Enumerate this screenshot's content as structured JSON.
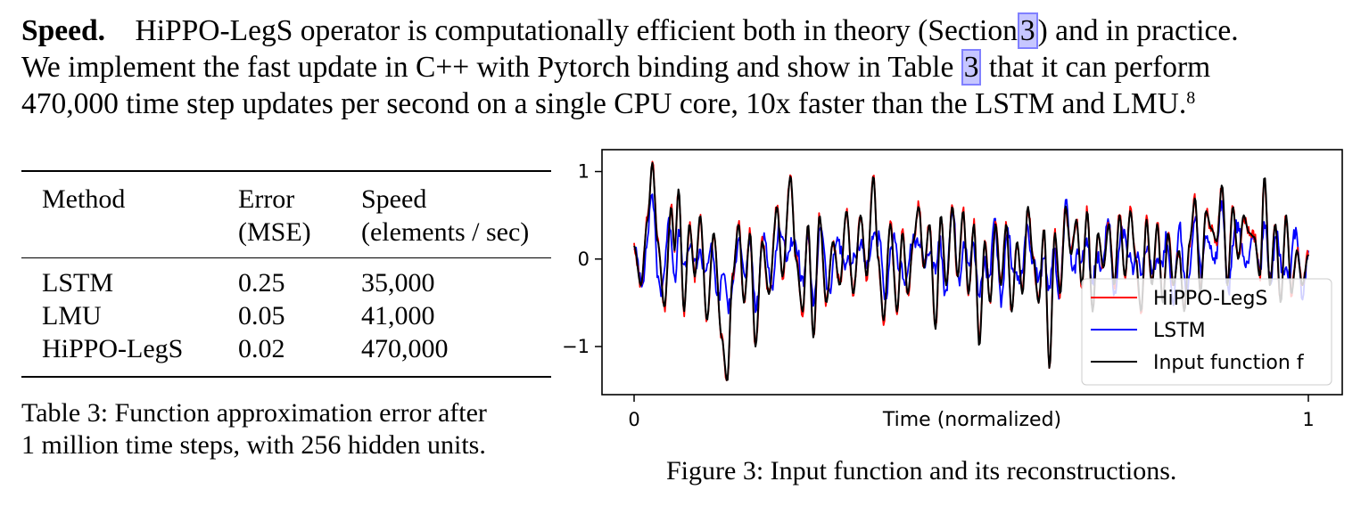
{
  "paragraph": {
    "heading": "Speed.",
    "segments": [
      "HiPPO-LegS operator is computationally efficient both in theory (Section",
      ") and in practice.",
      "We implement the fast update in C++ with Pytorch binding and show in Table",
      "that it can perform",
      "470,000 time step updates per second on a single CPU core, 10x faster than the LSTM and LMU."
    ],
    "ref_section": "3",
    "ref_table": "3",
    "footnote": "8"
  },
  "table": {
    "headers": [
      [
        "Method",
        ""
      ],
      [
        "Error",
        "(MSE)"
      ],
      [
        "Speed",
        "(elements / sec)"
      ]
    ],
    "rows": [
      [
        "LSTM",
        "0.25",
        "35,000"
      ],
      [
        "LMU",
        "0.05",
        "41,000"
      ],
      [
        "HiPPO-LegS",
        "0.02",
        "470,000"
      ]
    ],
    "caption_line1": "Table 3: Function approximation error after",
    "caption_line2": "1 million time steps, with 256 hidden units."
  },
  "figure": {
    "caption": "Figure 3: Input function and its reconstructions."
  },
  "chart_data": {
    "type": "line",
    "xlabel": "Time (normalized)",
    "ylabel": "",
    "xlim": [
      0,
      1
    ],
    "ylim": [
      -1.55,
      1.25
    ],
    "x_ticks": [
      "0",
      "1"
    ],
    "y_ticks": [
      {
        "v": 1,
        "label": "1"
      },
      {
        "v": 0,
        "label": "0"
      },
      {
        "v": -1,
        "label": "−1"
      }
    ],
    "legend_position": "lower-right",
    "grid": false,
    "series": [
      {
        "name": "HiPPO-LegS",
        "color": "#ff0000",
        "noise_seed": 11,
        "noise_amp": 0.07,
        "width": 1.8
      },
      {
        "name": "LSTM",
        "color": "#0000ff",
        "noise_seed": 23,
        "noise_amp": 0.0,
        "width": 1.8
      },
      {
        "name": "Input function f",
        "color": "#000000",
        "noise_seed": 0,
        "noise_amp": 0.0,
        "width": 2.0
      }
    ],
    "notes_input_function": [
      [
        0.0,
        0.15
      ],
      [
        0.01,
        -0.3
      ],
      [
        0.02,
        0.45
      ],
      [
        0.027,
        1.1
      ],
      [
        0.035,
        0.2
      ],
      [
        0.045,
        -0.55
      ],
      [
        0.055,
        0.6
      ],
      [
        0.06,
        0.1
      ],
      [
        0.066,
        0.8
      ],
      [
        0.074,
        -0.6
      ],
      [
        0.082,
        0.4
      ],
      [
        0.09,
        -0.2
      ],
      [
        0.098,
        0.5
      ],
      [
        0.108,
        -0.7
      ],
      [
        0.118,
        0.3
      ],
      [
        0.13,
        -0.9
      ],
      [
        0.138,
        -1.4
      ],
      [
        0.146,
        -0.2
      ],
      [
        0.155,
        0.4
      ],
      [
        0.163,
        -0.5
      ],
      [
        0.172,
        0.3
      ],
      [
        0.18,
        -1.0
      ],
      [
        0.19,
        0.2
      ],
      [
        0.2,
        -0.4
      ],
      [
        0.212,
        0.6
      ],
      [
        0.22,
        -0.2
      ],
      [
        0.232,
        0.95
      ],
      [
        0.24,
        0.0
      ],
      [
        0.25,
        -0.6
      ],
      [
        0.258,
        0.4
      ],
      [
        0.266,
        -0.9
      ],
      [
        0.275,
        0.5
      ],
      [
        0.285,
        -0.5
      ],
      [
        0.295,
        0.2
      ],
      [
        0.305,
        -0.3
      ],
      [
        0.315,
        0.55
      ],
      [
        0.325,
        -0.4
      ],
      [
        0.336,
        0.5
      ],
      [
        0.345,
        -0.2
      ],
      [
        0.355,
        0.95
      ],
      [
        0.362,
        0.0
      ],
      [
        0.37,
        -0.7
      ],
      [
        0.38,
        0.4
      ],
      [
        0.39,
        -0.6
      ],
      [
        0.398,
        0.3
      ],
      [
        0.406,
        -0.4
      ],
      [
        0.414,
        0.2
      ],
      [
        0.422,
        0.6
      ],
      [
        0.43,
        -0.1
      ],
      [
        0.438,
        0.4
      ],
      [
        0.447,
        -0.8
      ],
      [
        0.455,
        0.5
      ],
      [
        0.463,
        -0.3
      ],
      [
        0.472,
        0.6
      ],
      [
        0.48,
        -0.2
      ],
      [
        0.488,
        0.55
      ],
      [
        0.496,
        -0.4
      ],
      [
        0.504,
        0.4
      ],
      [
        0.512,
        -1.0
      ],
      [
        0.52,
        0.2
      ],
      [
        0.528,
        -0.5
      ],
      [
        0.536,
        0.4
      ],
      [
        0.544,
        -0.3
      ],
      [
        0.552,
        0.4
      ],
      [
        0.56,
        -0.6
      ],
      [
        0.568,
        0.2
      ],
      [
        0.576,
        -0.4
      ],
      [
        0.584,
        0.6
      ],
      [
        0.592,
        0.0
      ],
      [
        0.6,
        -0.5
      ],
      [
        0.608,
        0.35
      ],
      [
        0.616,
        -1.25
      ],
      [
        0.624,
        0.3
      ],
      [
        0.632,
        -0.4
      ],
      [
        0.64,
        0.6
      ],
      [
        0.648,
        0.05
      ],
      [
        0.656,
        0.45
      ],
      [
        0.664,
        -0.3
      ],
      [
        0.672,
        0.55
      ],
      [
        0.68,
        -0.6
      ],
      [
        0.688,
        0.3
      ],
      [
        0.696,
        -0.1
      ],
      [
        0.704,
        0.4
      ],
      [
        0.712,
        -0.3
      ],
      [
        0.72,
        0.5
      ],
      [
        0.728,
        -0.2
      ],
      [
        0.736,
        0.55
      ],
      [
        0.744,
        0.0
      ],
      [
        0.752,
        -0.6
      ],
      [
        0.76,
        0.45
      ],
      [
        0.768,
        -0.3
      ],
      [
        0.776,
        0.4
      ],
      [
        0.784,
        -0.5
      ],
      [
        0.792,
        0.3
      ],
      [
        0.8,
        -0.3
      ],
      [
        0.808,
        0.1
      ],
      [
        0.816,
        -0.6
      ],
      [
        0.824,
        0.2
      ],
      [
        0.832,
        0.7
      ],
      [
        0.84,
        -0.4
      ],
      [
        0.848,
        0.55
      ],
      [
        0.856,
        0.35
      ],
      [
        0.864,
        0.2
      ],
      [
        0.872,
        0.85
      ],
      [
        0.88,
        -0.3
      ],
      [
        0.888,
        0.6
      ],
      [
        0.896,
        0.0
      ],
      [
        0.904,
        0.5
      ],
      [
        0.912,
        0.3
      ],
      [
        0.92,
        0.25
      ],
      [
        0.928,
        -0.2
      ],
      [
        0.935,
        0.95
      ],
      [
        0.943,
        -0.3
      ],
      [
        0.951,
        0.4
      ],
      [
        0.959,
        -0.5
      ],
      [
        0.967,
        0.5
      ],
      [
        0.975,
        -0.4
      ],
      [
        0.983,
        0.1
      ],
      [
        0.991,
        -0.3
      ],
      [
        1.0,
        0.05
      ]
    ]
  }
}
